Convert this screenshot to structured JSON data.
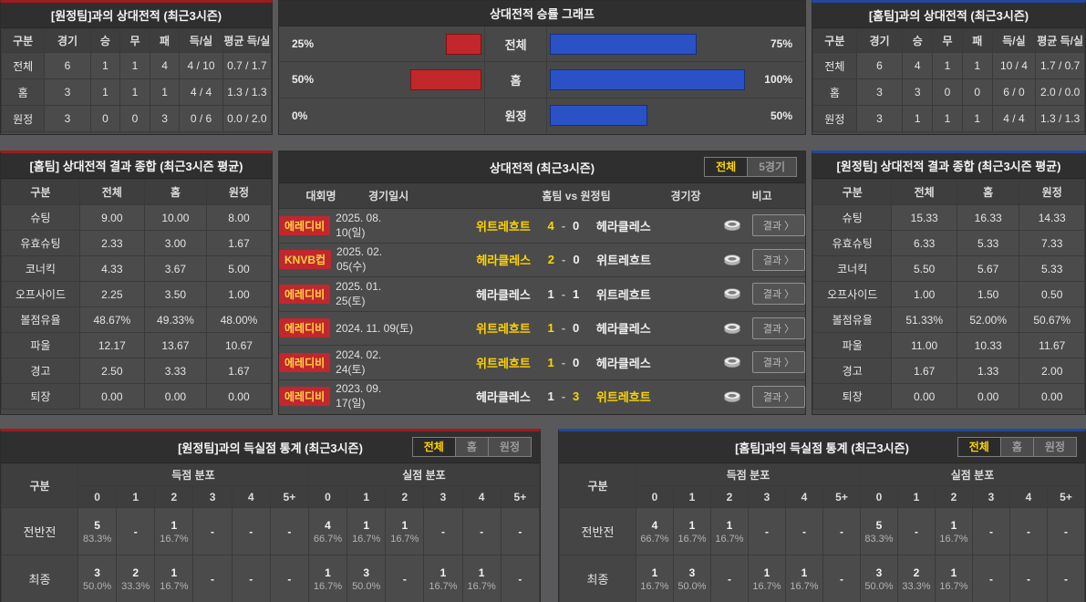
{
  "colors": {
    "page_bg": "#59595b",
    "panel_bg": "#484848",
    "accent_red": "#9e1b1e",
    "accent_blue": "#23479c",
    "bar_red": "#c2272b",
    "bar_blue": "#2b51c6",
    "highlight_yellow": "#ffd400",
    "badge_red": "#c1272d"
  },
  "chart_data": {
    "type": "bar",
    "title": "상대전적 승률 그래프",
    "orientation": "horizontal-diverging",
    "categories": [
      "전체",
      "홈",
      "원정"
    ],
    "series": [
      {
        "name": "원정팀 승률 (red, left)",
        "values": [
          25,
          50,
          0
        ]
      },
      {
        "name": "홈팀 승률 (blue, right)",
        "values": [
          75,
          100,
          50
        ]
      }
    ],
    "unit": "%",
    "xlim": [
      0,
      100
    ],
    "legend_position": "none",
    "grid": false
  },
  "score_separator": "-",
  "top_left": {
    "title": "[원정팀]과의 상대전적 (최근3시즌)",
    "headers": [
      "구분",
      "경기",
      "승",
      "무",
      "패",
      "득/실",
      "평균 득/실"
    ],
    "rows": [
      {
        "label": "전체",
        "cells": [
          "6",
          "1",
          "1",
          "4",
          "4 / 10",
          "0.7 / 1.7"
        ]
      },
      {
        "label": "홈",
        "cells": [
          "3",
          "1",
          "1",
          "1",
          "4 / 4",
          "1.3 / 1.3"
        ]
      },
      {
        "label": "원정",
        "cells": [
          "3",
          "0",
          "0",
          "3",
          "0 / 6",
          "0.0 / 2.0"
        ]
      }
    ]
  },
  "graph": {
    "title": "상대전적 승률 그래프",
    "rows": [
      {
        "label": "전체",
        "away_pct_label": "25%",
        "away_pct": 25,
        "home_pct_label": "75%",
        "home_pct": 75
      },
      {
        "label": "홈",
        "away_pct_label": "50%",
        "away_pct": 50,
        "home_pct_label": "100%",
        "home_pct": 100
      },
      {
        "label": "원정",
        "away_pct_label": "0%",
        "away_pct": 0,
        "home_pct_label": "50%",
        "home_pct": 50
      }
    ]
  },
  "top_right": {
    "title": "[홈팀]과의 상대전적 (최근3시즌)",
    "headers": [
      "구분",
      "경기",
      "승",
      "무",
      "패",
      "득/실",
      "평균 득/실"
    ],
    "rows": [
      {
        "label": "전체",
        "cells": [
          "6",
          "4",
          "1",
          "1",
          "10 / 4",
          "1.7 / 0.7"
        ]
      },
      {
        "label": "홈",
        "cells": [
          "3",
          "3",
          "0",
          "0",
          "6 / 0",
          "2.0 / 0.0"
        ]
      },
      {
        "label": "원정",
        "cells": [
          "3",
          "1",
          "1",
          "1",
          "4 / 4",
          "1.3 / 1.3"
        ]
      }
    ]
  },
  "mid_left": {
    "title": "[홈팀] 상대전적 결과 종합 (최근3시즌 평균)",
    "headers": [
      "구분",
      "전체",
      "홈",
      "원정"
    ],
    "rows": [
      {
        "label": "슈팅",
        "cells": [
          "9.00",
          "10.00",
          "8.00"
        ]
      },
      {
        "label": "유효슈팅",
        "cells": [
          "2.33",
          "3.00",
          "1.67"
        ]
      },
      {
        "label": "코너킥",
        "cells": [
          "4.33",
          "3.67",
          "5.00"
        ]
      },
      {
        "label": "오프사이드",
        "cells": [
          "2.25",
          "3.50",
          "1.00"
        ]
      },
      {
        "label": "볼점유율",
        "cells": [
          "48.67%",
          "49.33%",
          "48.00%"
        ]
      },
      {
        "label": "파울",
        "cells": [
          "12.17",
          "13.67",
          "10.67"
        ]
      },
      {
        "label": "경고",
        "cells": [
          "2.50",
          "3.33",
          "1.67"
        ]
      },
      {
        "label": "퇴장",
        "cells": [
          "0.00",
          "0.00",
          "0.00"
        ]
      }
    ]
  },
  "matches": {
    "title": "상대전적 (최근3시즌)",
    "filters": [
      "전체",
      "5경기"
    ],
    "headers": {
      "league": "대회명",
      "date": "경기일시",
      "match": "홈팀   vs   원정팀",
      "stadium": "경기장",
      "note": "비고"
    },
    "result_button": "결과 〉",
    "rows": [
      {
        "league": "에레디비",
        "date": "2025. 08. 10(일)",
        "home": "위트레흐트",
        "score_home": "4",
        "score_away": "0",
        "away": "헤라클레스",
        "home_win": true,
        "away_win": false
      },
      {
        "league": "KNVB컵",
        "date": "2025. 02. 05(수)",
        "home": "헤라클레스",
        "score_home": "2",
        "score_away": "0",
        "away": "위트레흐트",
        "home_win": true,
        "away_win": false
      },
      {
        "league": "에레디비",
        "date": "2025. 01. 25(토)",
        "home": "헤라클레스",
        "score_home": "1",
        "score_away": "1",
        "away": "위트레흐트",
        "home_win": false,
        "away_win": false
      },
      {
        "league": "에레디비",
        "date": "2024. 11. 09(토)",
        "home": "위트레흐트",
        "score_home": "1",
        "score_away": "0",
        "away": "헤라클레스",
        "home_win": true,
        "away_win": false
      },
      {
        "league": "에레디비",
        "date": "2024. 02. 24(토)",
        "home": "위트레흐트",
        "score_home": "1",
        "score_away": "0",
        "away": "헤라클레스",
        "home_win": true,
        "away_win": false
      },
      {
        "league": "에레디비",
        "date": "2023. 09. 17(일)",
        "home": "헤라클레스",
        "score_home": "1",
        "score_away": "3",
        "away": "위트레흐트",
        "home_win": false,
        "away_win": true
      }
    ]
  },
  "mid_right": {
    "title": "[원정팀] 상대전적 결과 종합 (최근3시즌 평균)",
    "headers": [
      "구분",
      "전체",
      "홈",
      "원정"
    ],
    "rows": [
      {
        "label": "슈팅",
        "cells": [
          "15.33",
          "16.33",
          "14.33"
        ]
      },
      {
        "label": "유효슈팅",
        "cells": [
          "6.33",
          "5.33",
          "7.33"
        ]
      },
      {
        "label": "코너킥",
        "cells": [
          "5.50",
          "5.67",
          "5.33"
        ]
      },
      {
        "label": "오프사이드",
        "cells": [
          "1.00",
          "1.50",
          "0.50"
        ]
      },
      {
        "label": "볼점유율",
        "cells": [
          "51.33%",
          "52.00%",
          "50.67%"
        ]
      },
      {
        "label": "파울",
        "cells": [
          "11.00",
          "10.33",
          "11.67"
        ]
      },
      {
        "label": "경고",
        "cells": [
          "1.67",
          "1.33",
          "2.00"
        ]
      },
      {
        "label": "퇴장",
        "cells": [
          "0.00",
          "0.00",
          "0.00"
        ]
      }
    ]
  },
  "bottom_left": {
    "title": "[원정팀]과의 득실점 통계 (최근3시즌)",
    "filters": [
      "전체",
      "홈",
      "원정"
    ],
    "col_label": "구분",
    "scored_label": "득점 분포",
    "conceded_label": "실점 분포",
    "bins": [
      "0",
      "1",
      "2",
      "3",
      "4",
      "5+"
    ],
    "rows": [
      {
        "label": "전반전",
        "scored": [
          {
            "n": "5",
            "p": "83.3%"
          },
          {
            "n": "-",
            "p": ""
          },
          {
            "n": "1",
            "p": "16.7%"
          },
          {
            "n": "-",
            "p": ""
          },
          {
            "n": "-",
            "p": ""
          },
          {
            "n": "-",
            "p": ""
          }
        ],
        "conceded": [
          {
            "n": "4",
            "p": "66.7%"
          },
          {
            "n": "1",
            "p": "16.7%"
          },
          {
            "n": "1",
            "p": "16.7%"
          },
          {
            "n": "-",
            "p": ""
          },
          {
            "n": "-",
            "p": ""
          },
          {
            "n": "-",
            "p": ""
          }
        ]
      },
      {
        "label": "최종",
        "scored": [
          {
            "n": "3",
            "p": "50.0%"
          },
          {
            "n": "2",
            "p": "33.3%"
          },
          {
            "n": "1",
            "p": "16.7%"
          },
          {
            "n": "-",
            "p": ""
          },
          {
            "n": "-",
            "p": ""
          },
          {
            "n": "-",
            "p": ""
          }
        ],
        "conceded": [
          {
            "n": "1",
            "p": "16.7%"
          },
          {
            "n": "3",
            "p": "50.0%"
          },
          {
            "n": "-",
            "p": ""
          },
          {
            "n": "1",
            "p": "16.7%"
          },
          {
            "n": "1",
            "p": "16.7%"
          },
          {
            "n": "-",
            "p": ""
          }
        ]
      }
    ]
  },
  "bottom_right": {
    "title": "[홈팀]과의 득실점 통계 (최근3시즌)",
    "filters": [
      "전체",
      "홈",
      "원정"
    ],
    "col_label": "구분",
    "scored_label": "득점 분포",
    "conceded_label": "실점 분포",
    "bins": [
      "0",
      "1",
      "2",
      "3",
      "4",
      "5+"
    ],
    "rows": [
      {
        "label": "전반전",
        "scored": [
          {
            "n": "4",
            "p": "66.7%"
          },
          {
            "n": "1",
            "p": "16.7%"
          },
          {
            "n": "1",
            "p": "16.7%"
          },
          {
            "n": "-",
            "p": ""
          },
          {
            "n": "-",
            "p": ""
          },
          {
            "n": "-",
            "p": ""
          }
        ],
        "conceded": [
          {
            "n": "5",
            "p": "83.3%"
          },
          {
            "n": "-",
            "p": ""
          },
          {
            "n": "1",
            "p": "16.7%"
          },
          {
            "n": "-",
            "p": ""
          },
          {
            "n": "-",
            "p": ""
          },
          {
            "n": "-",
            "p": ""
          }
        ]
      },
      {
        "label": "최종",
        "scored": [
          {
            "n": "1",
            "p": "16.7%"
          },
          {
            "n": "3",
            "p": "50.0%"
          },
          {
            "n": "-",
            "p": ""
          },
          {
            "n": "1",
            "p": "16.7%"
          },
          {
            "n": "1",
            "p": "16.7%"
          },
          {
            "n": "-",
            "p": ""
          }
        ],
        "conceded": [
          {
            "n": "3",
            "p": "50.0%"
          },
          {
            "n": "2",
            "p": "33.3%"
          },
          {
            "n": "1",
            "p": "16.7%"
          },
          {
            "n": "-",
            "p": ""
          },
          {
            "n": "-",
            "p": ""
          },
          {
            "n": "-",
            "p": ""
          }
        ]
      }
    ]
  }
}
